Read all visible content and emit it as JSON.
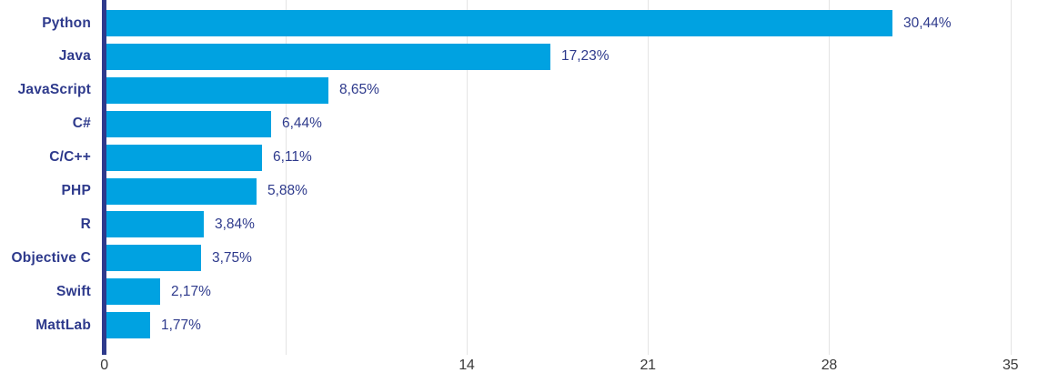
{
  "chart_data": {
    "type": "bar",
    "orientation": "horizontal",
    "title": "",
    "xlabel": "",
    "ylabel": "",
    "categories": [
      "Python",
      "Java",
      "JavaScript",
      "C#",
      "C/C++",
      "PHP",
      "R",
      "Objective C",
      "Swift",
      "MattLab"
    ],
    "values": [
      30.44,
      17.23,
      8.65,
      6.44,
      6.11,
      5.88,
      3.84,
      3.75,
      2.17,
      1.77
    ],
    "value_labels": [
      "30,44%",
      "17,23%",
      "8,65%",
      "6,44%",
      "6,11%",
      "5,88%",
      "3,84%",
      "3,75%",
      "2,17%",
      "1,77%"
    ],
    "xlim": [
      0,
      35
    ],
    "x_tick_labels": [
      "0",
      "14",
      "21",
      "28",
      "35"
    ],
    "x_tick_values": [
      0,
      14,
      21,
      28,
      35
    ],
    "x_gridline_values": [
      7,
      14,
      21,
      28,
      35
    ],
    "grid": "vertical-only",
    "legend": "none",
    "colors": {
      "bar": "#00a2e1",
      "category_label": "#2e3a8c",
      "value_label": "#2e3a8c",
      "axis_line": "#2e3a8c",
      "gridline": "#e4e4e4",
      "tick_label": "#3a3a3a",
      "background": "#ffffff"
    }
  }
}
